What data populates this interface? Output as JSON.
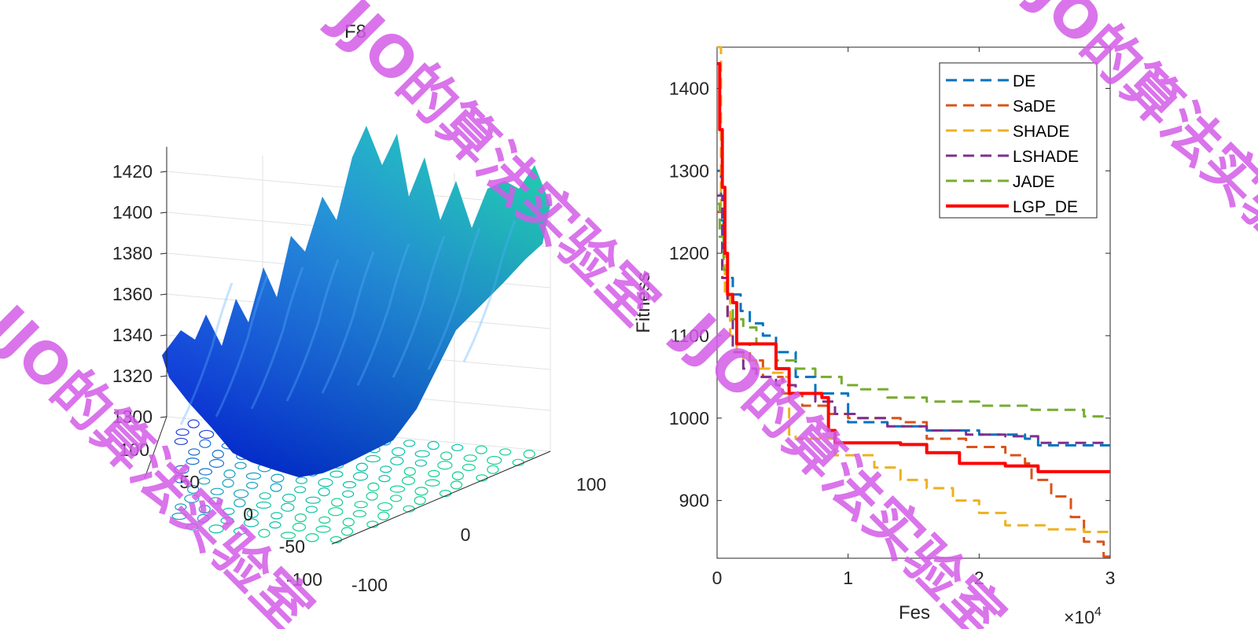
{
  "chart_data": [
    {
      "type": "surface",
      "title": "F8",
      "zlim": [
        1300,
        1430
      ],
      "z_ticks": [
        1300,
        1320,
        1340,
        1360,
        1380,
        1400,
        1420
      ],
      "x_ticks": [
        -100,
        0,
        100
      ],
      "y_ticks": [
        -100,
        -50,
        0,
        50,
        100
      ],
      "colormap": [
        "#0020ff",
        "#0a8cd8",
        "#00d79a"
      ],
      "contour": true
    },
    {
      "type": "line",
      "title": "",
      "xlabel": "Fes",
      "ylabel": "Fitness",
      "x_exponent": "×10",
      "x_exponent_power": "4",
      "xlim": [
        0,
        3
      ],
      "ylim": [
        830,
        1450
      ],
      "x_ticks": [
        "0",
        "1",
        "2",
        "3"
      ],
      "y_ticks": [
        900,
        1000,
        1100,
        1200,
        1300,
        1400
      ],
      "legend_position": "top-right",
      "series": [
        {
          "name": "DE",
          "color": "#0072bd",
          "style": "dashed",
          "x": [
            0,
            0.03,
            0.05,
            0.08,
            0.12,
            0.18,
            0.25,
            0.35,
            0.45,
            0.6,
            0.75,
            0.9,
            1.0,
            1.3,
            1.6,
            2.0,
            2.35,
            2.45,
            3.0
          ],
          "y": [
            1300,
            1240,
            1200,
            1170,
            1150,
            1130,
            1115,
            1100,
            1080,
            1050,
            1030,
            1030,
            995,
            990,
            985,
            980,
            975,
            967,
            967
          ]
        },
        {
          "name": "SaDE",
          "color": "#d95319",
          "style": "dashed",
          "x": [
            0,
            0.04,
            0.08,
            0.15,
            0.25,
            0.35,
            0.5,
            0.65,
            0.85,
            1.0,
            1.4,
            1.6,
            1.9,
            2.2,
            2.35,
            2.4,
            2.55,
            2.7,
            2.8,
            2.95,
            3.0
          ],
          "y": [
            1250,
            1170,
            1120,
            1090,
            1070,
            1050,
            1030,
            1015,
            1005,
            1000,
            995,
            975,
            965,
            955,
            945,
            925,
            905,
            880,
            850,
            832,
            830
          ]
        },
        {
          "name": "SHADE",
          "color": "#edb120",
          "style": "dashed",
          "x": [
            0,
            0.03,
            0.06,
            0.1,
            0.15,
            0.2,
            0.3,
            0.4,
            0.5,
            0.55,
            0.6,
            0.85,
            0.9,
            1.2,
            1.4,
            1.6,
            1.8,
            2.0,
            2.2,
            2.5,
            2.8,
            3.0
          ],
          "y": [
            1450,
            1250,
            1150,
            1100,
            1080,
            1070,
            1060,
            1055,
            1050,
            980,
            975,
            975,
            955,
            940,
            925,
            915,
            900,
            885,
            870,
            865,
            862,
            860
          ]
        },
        {
          "name": "LSHADE",
          "color": "#7e2f8e",
          "style": "dashed",
          "x": [
            0,
            0.04,
            0.08,
            0.12,
            0.2,
            0.3,
            0.45,
            0.6,
            0.75,
            0.9,
            1.05,
            1.3,
            1.6,
            1.9,
            2.2,
            2.35,
            2.45,
            3.0
          ],
          "y": [
            1270,
            1170,
            1120,
            1080,
            1060,
            1050,
            1040,
            1030,
            1020,
            1005,
            1000,
            990,
            985,
            980,
            978,
            978,
            970,
            970
          ]
        },
        {
          "name": "JADE",
          "color": "#77ac30",
          "style": "dashed",
          "x": [
            0,
            0.02,
            0.05,
            0.08,
            0.12,
            0.2,
            0.3,
            0.45,
            0.6,
            0.75,
            0.95,
            1.1,
            1.3,
            1.6,
            2.0,
            2.4,
            2.8,
            3.0
          ],
          "y": [
            1260,
            1220,
            1180,
            1150,
            1120,
            1110,
            1090,
            1070,
            1060,
            1050,
            1040,
            1035,
            1025,
            1020,
            1015,
            1010,
            1002,
            1002
          ]
        },
        {
          "name": "LGP_DE",
          "color": "#ff0000",
          "style": "solid",
          "x": [
            0,
            0.02,
            0.04,
            0.06,
            0.08,
            0.12,
            0.15,
            0.2,
            0.3,
            0.45,
            0.55,
            0.65,
            0.8,
            0.85,
            0.9,
            1.1,
            1.4,
            1.6,
            1.85,
            2.2,
            2.45,
            2.6,
            3.0
          ],
          "y": [
            1430,
            1350,
            1280,
            1200,
            1150,
            1140,
            1090,
            1090,
            1090,
            1060,
            1030,
            1030,
            1025,
            985,
            970,
            970,
            968,
            958,
            945,
            942,
            935,
            935,
            935
          ]
        }
      ]
    }
  ],
  "watermark_text": "JJO的算法实验室"
}
